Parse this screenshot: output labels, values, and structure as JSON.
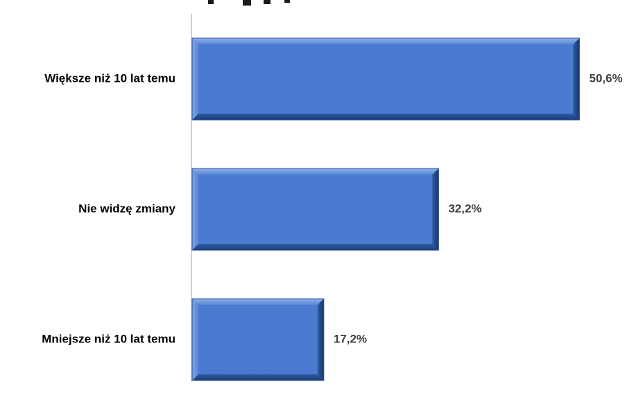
{
  "chart_data": {
    "type": "bar",
    "orientation": "horizontal",
    "categories": [
      "Większe niż 10 lat temu",
      "Nie widzę zmiany",
      "Mniejsze niż 10 lat temu"
    ],
    "values": [
      50.6,
      32.2,
      17.2
    ],
    "value_labels": [
      "50,6%",
      "32,2%",
      "17,2%"
    ],
    "xlim": [
      0,
      56
    ],
    "unit": "%",
    "grid": false,
    "legend": "none",
    "bar_color": "#4a7bd0",
    "bar_edge_color": "#2f5597",
    "axis_color": "#bfbfbf"
  }
}
